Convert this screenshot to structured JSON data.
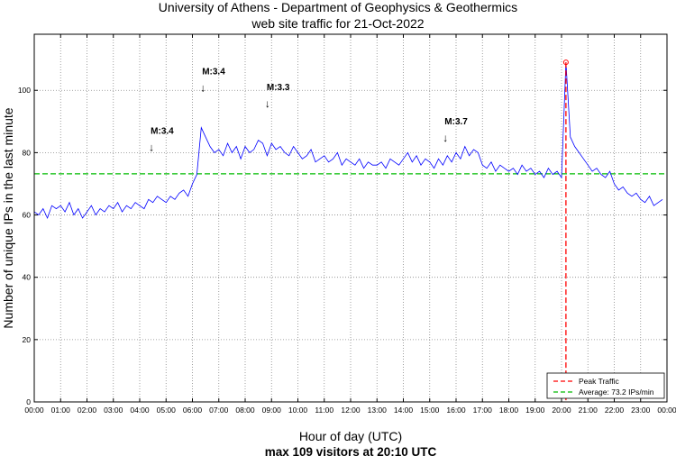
{
  "chart_data": {
    "type": "line",
    "title": [
      "University of Athens - Department of Geophysics & Geothermics",
      "web site traffic for 21-Oct-2022"
    ],
    "xlabel": "Hour of day (UTC)",
    "subtitle": "max 109 visitors at 20:10 UTC",
    "ylabel": "Number of unique IPs in the last minute",
    "xlim": [
      0,
      24
    ],
    "ylim": [
      0,
      118
    ],
    "grid": true,
    "x_ticks": [
      "00:00",
      "01:00",
      "02:00",
      "03:00",
      "04:00",
      "05:00",
      "06:00",
      "07:00",
      "08:00",
      "09:00",
      "10:00",
      "11:00",
      "12:00",
      "13:00",
      "14:00",
      "15:00",
      "16:00",
      "17:00",
      "18:00",
      "19:00",
      "20:00",
      "21:00",
      "22:00",
      "23:00",
      "00:00"
    ],
    "y_ticks": [
      0,
      20,
      40,
      60,
      80,
      100
    ],
    "sample_interval_minutes": 10,
    "series": [
      {
        "name": "Traffic",
        "color": "#0000ff",
        "values": [
          61,
          60,
          62,
          59,
          63,
          62,
          63,
          61,
          64,
          60,
          62,
          59,
          61,
          63,
          60,
          62,
          61,
          63,
          62,
          64,
          61,
          63,
          62,
          64,
          63,
          62,
          65,
          64,
          66,
          65,
          64,
          66,
          65,
          67,
          68,
          66,
          70,
          73,
          88,
          85,
          82,
          80,
          81,
          79,
          83,
          80,
          82,
          78,
          82,
          80,
          81,
          84,
          83,
          79,
          83,
          81,
          82,
          80,
          79,
          82,
          80,
          78,
          79,
          81,
          77,
          78,
          79,
          77,
          78,
          80,
          76,
          78,
          77,
          76,
          78,
          75,
          77,
          76,
          76,
          77,
          75,
          78,
          77,
          76,
          78,
          80,
          77,
          79,
          76,
          78,
          77,
          75,
          78,
          76,
          79,
          77,
          80,
          78,
          82,
          79,
          81,
          80,
          76,
          75,
          77,
          74,
          76,
          75,
          74,
          75,
          73,
          76,
          74,
          75,
          73,
          74,
          72,
          75,
          73,
          74,
          72,
          109,
          85,
          82,
          80,
          78,
          76,
          74,
          75,
          73,
          72,
          74,
          70,
          68,
          69,
          67,
          66,
          67,
          65,
          64,
          66,
          63,
          64,
          65
        ]
      }
    ],
    "peak": {
      "hour": 20.167,
      "value": 109,
      "label": "Peak Traffic",
      "color": "#ff0000"
    },
    "average": {
      "value": 73.2,
      "label": "Average: 73.2 IPs/min",
      "color": "#00bb00"
    },
    "annotations": [
      {
        "hour": 4.45,
        "value": 80,
        "text": "M:3.4"
      },
      {
        "hour": 6.4,
        "value": 99,
        "text": "M:3.4"
      },
      {
        "hour": 8.85,
        "value": 94,
        "text": "M:3.3"
      },
      {
        "hour": 15.6,
        "value": 83,
        "text": "M:3.7"
      }
    ],
    "legend_position": "bottom-right"
  }
}
